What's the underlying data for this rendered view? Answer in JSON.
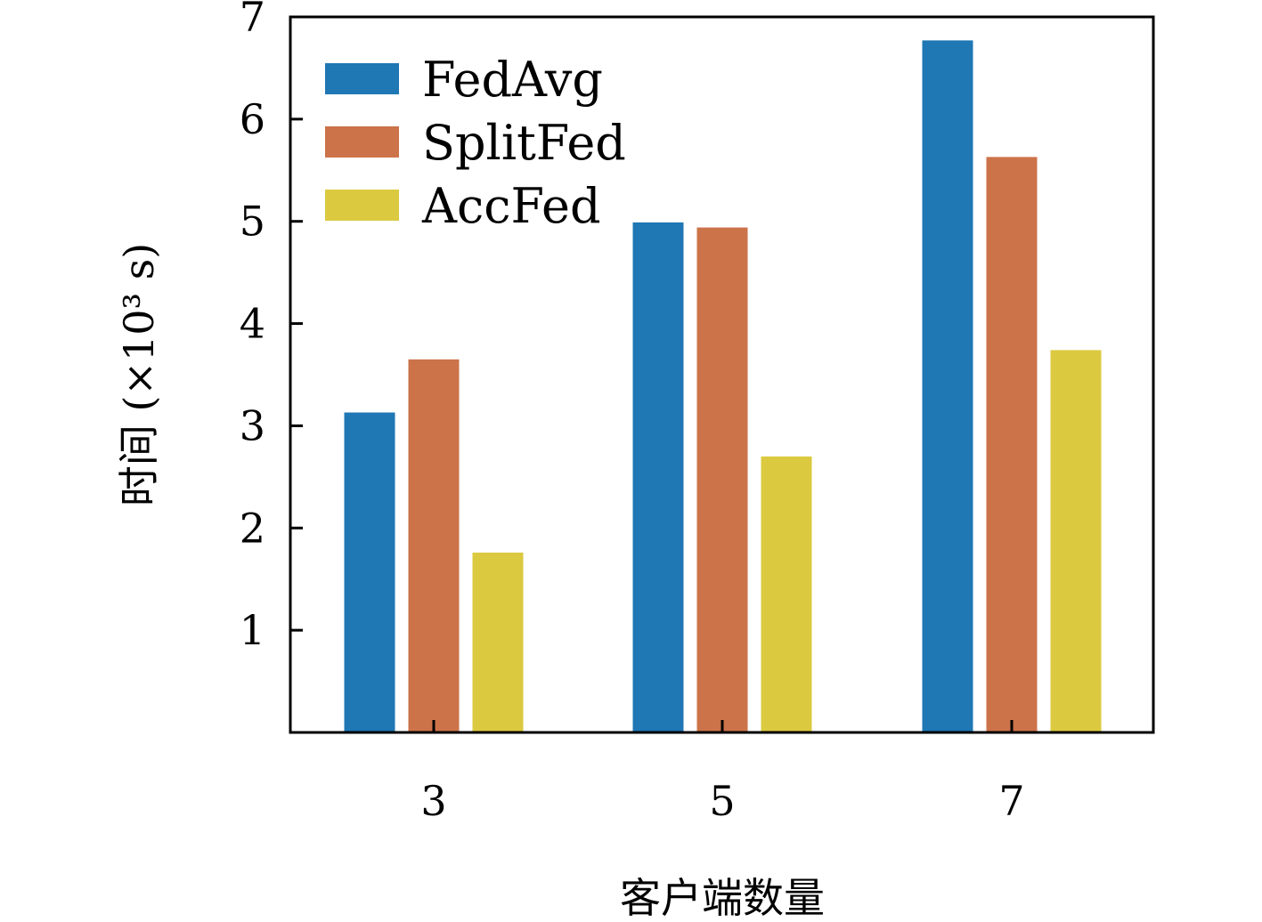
{
  "chart_data": {
    "type": "bar",
    "categories": [
      "3",
      "5",
      "7"
    ],
    "series": [
      {
        "name": "FedAvg",
        "values": [
          3.13,
          4.99,
          6.77
        ],
        "color": "#1f77b4"
      },
      {
        "name": "SplitFed",
        "values": [
          3.65,
          4.94,
          5.63
        ],
        "color": "#cc734a"
      },
      {
        "name": "AccFed",
        "values": [
          1.76,
          2.7,
          3.74
        ],
        "color": "#dbc940"
      }
    ],
    "xlabel": "客户端数量",
    "ylabel": "时间 (×10³ s)",
    "ylim": [
      0,
      7
    ],
    "yticks": [
      "1",
      "2",
      "3",
      "4",
      "5",
      "6",
      "7"
    ],
    "grid": false,
    "legend": "top-left"
  }
}
